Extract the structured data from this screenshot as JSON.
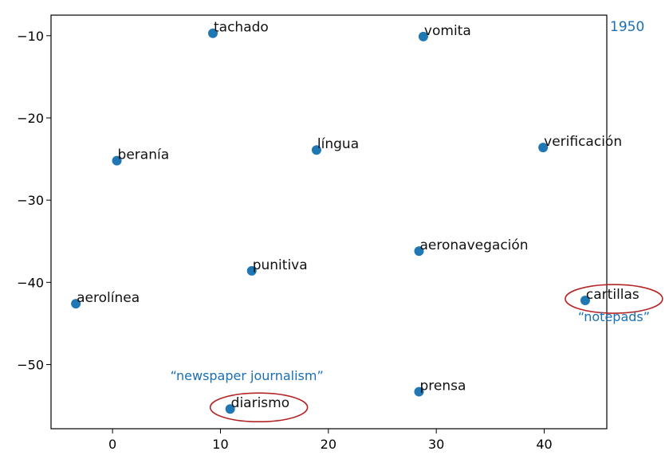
{
  "chart_data": {
    "type": "scatter",
    "year_label": "1950",
    "xlim": [
      -5.7,
      45.8
    ],
    "ylim": [
      -57.8,
      -7.5
    ],
    "xticks": [
      0,
      10,
      20,
      30,
      40
    ],
    "yticks": [
      -10,
      -20,
      -30,
      -40,
      -50
    ],
    "point_color": "#1f77b4",
    "points": [
      {
        "label": "tachado",
        "x": 9.3,
        "y": -9.7
      },
      {
        "label": "vomita",
        "x": 28.8,
        "y": -10.1
      },
      {
        "label": "beranía",
        "x": 0.4,
        "y": -25.2
      },
      {
        "label": "língua",
        "x": 18.9,
        "y": -23.9
      },
      {
        "label": "verificación",
        "x": 39.9,
        "y": -23.6
      },
      {
        "label": "aeronavegación",
        "x": 28.4,
        "y": -36.2
      },
      {
        "label": "punitiva",
        "x": 12.9,
        "y": -38.6
      },
      {
        "label": "aerolínea",
        "x": -3.4,
        "y": -42.6
      },
      {
        "label": "cartillas",
        "x": 43.8,
        "y": -42.2
      },
      {
        "label": "prensa",
        "x": 28.4,
        "y": -53.3
      },
      {
        "label": "diarismo",
        "x": 10.9,
        "y": -55.4
      }
    ],
    "highlights": [
      {
        "label": "diarismo",
        "annotation": "“newspaper journalism”",
        "annotation_position": "above",
        "circle_color": "#b52525"
      },
      {
        "label": "cartillas",
        "annotation": "“notepads”",
        "annotation_position": "below",
        "circle_color": "#b52525"
      }
    ]
  }
}
